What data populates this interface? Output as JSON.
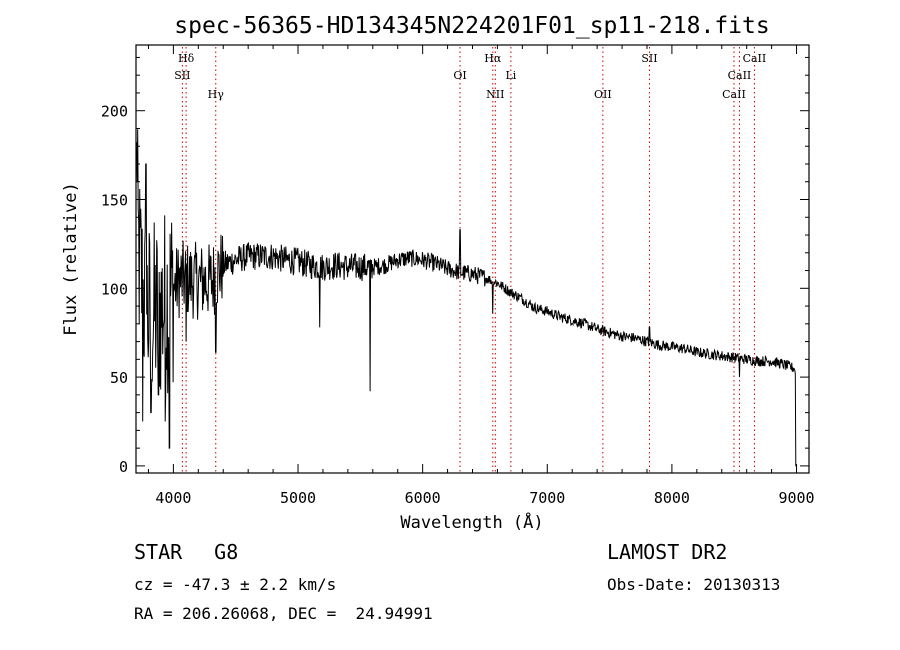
{
  "title": "spec-56365-HD134345N224201F01_sp11-218.fits",
  "info": {
    "class": "STAR",
    "subclass": "G8",
    "survey": "LAMOST DR2",
    "redshift": "cz = -47.3 ± 2.2 km/s",
    "obs_date": "Obs-Date: 20130313",
    "coords": "RA = 206.26068, DEC =  24.94991"
  },
  "chart_data": {
    "type": "line",
    "title": "spec-56365-HD134345N224201F01_sp11-218.fits",
    "xlabel": "Wavelength (Å)",
    "ylabel": "Flux (relative)",
    "xlim": [
      3700,
      9100
    ],
    "ylim": [
      -4,
      237
    ],
    "x_ticks": [
      4000,
      5000,
      6000,
      7000,
      8000,
      9000
    ],
    "y_ticks": [
      0,
      50,
      100,
      150,
      200
    ],
    "grid": false,
    "line_color": "#000000",
    "marker_color": "#cc0000",
    "continuum": [
      [
        3700,
        170
      ],
      [
        3720,
        120
      ],
      [
        3760,
        95
      ],
      [
        3800,
        85
      ],
      [
        3850,
        85
      ],
      [
        3900,
        88
      ],
      [
        3950,
        95
      ],
      [
        4000,
        100
      ],
      [
        4050,
        105
      ],
      [
        4100,
        105
      ],
      [
        4200,
        104
      ],
      [
        4300,
        104
      ],
      [
        4400,
        113
      ],
      [
        4500,
        116
      ],
      [
        4600,
        118
      ],
      [
        4700,
        118
      ],
      [
        4800,
        118
      ],
      [
        4900,
        116
      ],
      [
        5000,
        115
      ],
      [
        5100,
        113
      ],
      [
        5200,
        112
      ],
      [
        5300,
        113
      ],
      [
        5400,
        112
      ],
      [
        5500,
        112
      ],
      [
        5600,
        112
      ],
      [
        5700,
        113
      ],
      [
        5800,
        116
      ],
      [
        5900,
        117
      ],
      [
        6000,
        116
      ],
      [
        6100,
        114
      ],
      [
        6200,
        111
      ],
      [
        6300,
        109
      ],
      [
        6400,
        108
      ],
      [
        6500,
        106
      ],
      [
        6600,
        103
      ],
      [
        6700,
        98
      ],
      [
        6800,
        94
      ],
      [
        6900,
        89
      ],
      [
        7000,
        87
      ],
      [
        7100,
        84
      ],
      [
        7200,
        82
      ],
      [
        7300,
        80
      ],
      [
        7400,
        77
      ],
      [
        7500,
        75
      ],
      [
        7600,
        73
      ],
      [
        7700,
        72
      ],
      [
        7800,
        70
      ],
      [
        7900,
        68
      ],
      [
        8000,
        67
      ],
      [
        8100,
        66
      ],
      [
        8200,
        64
      ],
      [
        8300,
        63
      ],
      [
        8400,
        62
      ],
      [
        8500,
        61
      ],
      [
        8600,
        60
      ],
      [
        8700,
        59
      ],
      [
        8800,
        59
      ],
      [
        8900,
        57
      ],
      [
        8980,
        55
      ]
    ],
    "features": [
      {
        "wavelength": 3705,
        "flux": 182
      },
      {
        "wavelength": 3710,
        "flux": 160
      },
      {
        "wavelength": 3755,
        "flux": 25
      },
      {
        "wavelength": 3780,
        "flux": 170
      },
      {
        "wavelength": 3820,
        "flux": 30
      },
      {
        "wavelength": 3880,
        "flux": 40
      },
      {
        "wavelength": 3933,
        "flux": 25
      },
      {
        "wavelength": 3968,
        "flux": 10
      },
      {
        "wavelength": 4101,
        "flux": 70
      },
      {
        "wavelength": 4340,
        "flux": 64
      },
      {
        "wavelength": 5175,
        "flux": 78
      },
      {
        "wavelength": 5577,
        "flux": 42
      },
      {
        "wavelength": 6300,
        "flux": 133
      },
      {
        "wavelength": 6563,
        "flux": 86
      },
      {
        "wavelength": 7820,
        "flux": 78
      },
      {
        "wavelength": 8542,
        "flux": 50
      },
      {
        "wavelength": 8990,
        "flux": 52
      },
      {
        "wavelength": 8995,
        "flux": 0
      }
    ],
    "lines": [
      {
        "label": "Hδ",
        "wavelength": 4102,
        "row": 0
      },
      {
        "label": "SII",
        "wavelength": 4072,
        "row": 1
      },
      {
        "label": "Hγ",
        "wavelength": 4340,
        "row": 2
      },
      {
        "label": "OI",
        "wavelength": 6300,
        "row": 1
      },
      {
        "label": "Hα",
        "wavelength": 6563,
        "row": 0
      },
      {
        "label": "NII",
        "wavelength": 6583,
        "row": 2
      },
      {
        "label": "Li",
        "wavelength": 6708,
        "row": 1
      },
      {
        "label": "OII",
        "wavelength": 7446,
        "row": 2
      },
      {
        "label": "SII",
        "wavelength": 7820,
        "row": 0
      },
      {
        "label": "CaII",
        "wavelength": 8498,
        "row": 2
      },
      {
        "label": "CaII",
        "wavelength": 8542,
        "row": 1
      },
      {
        "label": "CaII",
        "wavelength": 8662,
        "row": 0
      }
    ]
  }
}
